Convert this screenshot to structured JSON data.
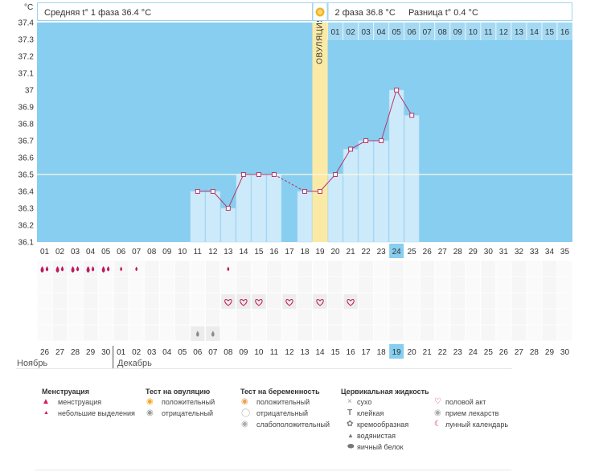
{
  "chart_data": {
    "type": "line",
    "y_unit": "°C",
    "ylim": [
      36.1,
      37.4
    ],
    "y_ticks": [
      "37.4",
      "37.3",
      "37.2",
      "37.1",
      "37",
      "36.9",
      "36.8",
      "36.7",
      "36.6",
      "36.5",
      "36.4",
      "36.3",
      "36.2",
      "36.1"
    ],
    "coverline": 36.5,
    "cycle_days": [
      "01",
      "02",
      "03",
      "04",
      "05",
      "06",
      "07",
      "08",
      "09",
      "10",
      "11",
      "12",
      "13",
      "14",
      "15",
      "16",
      "17",
      "18",
      "19",
      "20",
      "21",
      "22",
      "23",
      "24",
      "25",
      "26",
      "27",
      "28",
      "29",
      "30",
      "31",
      "32",
      "33",
      "34",
      "35"
    ],
    "today_day": "24",
    "ovulation_day": "19",
    "ovulation_label": "ОВУЛЯЦИЯ",
    "luteal_days": [
      "01",
      "02",
      "03",
      "04",
      "05",
      "06",
      "07",
      "08",
      "09",
      "10",
      "11",
      "12",
      "13",
      "14",
      "15",
      "16"
    ],
    "temperatures": [
      {
        "day": 11,
        "t": 36.4
      },
      {
        "day": 12,
        "t": 36.4
      },
      {
        "day": 13,
        "t": 36.3
      },
      {
        "day": 14,
        "t": 36.5
      },
      {
        "day": 15,
        "t": 36.5
      },
      {
        "day": 16,
        "t": 36.5
      },
      {
        "day": 18,
        "t": 36.4
      },
      {
        "day": 19,
        "t": 36.4
      },
      {
        "day": 20,
        "t": 36.5
      },
      {
        "day": 21,
        "t": 36.65
      },
      {
        "day": 22,
        "t": 36.7
      },
      {
        "day": 23,
        "t": 36.7
      },
      {
        "day": 24,
        "t": 37.0
      },
      {
        "day": 25,
        "t": 36.85
      }
    ],
    "dates": [
      "26",
      "27",
      "28",
      "29",
      "30",
      "01",
      "02",
      "03",
      "04",
      "05",
      "06",
      "07",
      "08",
      "09",
      "10",
      "11",
      "12",
      "13",
      "14",
      "15",
      "16",
      "17",
      "18",
      "19",
      "20",
      "21",
      "22",
      "23",
      "24",
      "25",
      "26",
      "27",
      "28",
      "29",
      "30"
    ],
    "date_colors": [
      "#333333",
      "#333333",
      "#333333",
      "#333333",
      "#c2185b",
      "#c2185b",
      "#333333",
      "#333333",
      "#333333",
      "#333333",
      "#333333",
      "#c2185b",
      "#c2185b",
      "#333333",
      "#333333",
      "#333333",
      "#333333",
      "#333333",
      "#c2185b",
      "#c2185b",
      "#333333",
      "#333333",
      "#333333",
      "#333333",
      "#333333",
      "#c2185b",
      "#c2185b",
      "#333333",
      "#333333",
      "#333333",
      "#333333",
      "#333333",
      "#c2185b",
      "#c2185b",
      "#333333"
    ],
    "today_date": "19",
    "months": {
      "left": "Ноябрь",
      "right": "Декабрь"
    },
    "symptoms": {
      "menstruation_big": [
        1,
        2,
        3,
        4,
        5
      ],
      "menstruation_small": [
        6,
        7,
        13
      ],
      "sex": [
        13,
        14,
        15,
        17,
        19,
        21
      ],
      "watery": [
        11,
        12
      ]
    },
    "header": {
      "phase1_label": "Средняя t° 1 фаза",
      "phase1_value": "36.4 °C",
      "phase2_label": "2 фаза",
      "phase2_value": "36.8 °C",
      "diff_label": "Разница t°",
      "diff_value": "0.4 °C"
    },
    "colors": {
      "plot_bg": "#87cef0",
      "bar_fill": "#cdeafb",
      "line": "#b5376b",
      "ovulation": "#fbeaa5",
      "coverline": "#fffbe0",
      "today": "#87cef0",
      "accent": "#c2185b"
    }
  },
  "legend": {
    "menstruation": {
      "title": "Менструация",
      "items": [
        "менструация",
        "небольшие выделения"
      ]
    },
    "ovulation_test": {
      "title": "Тест на овуляцию",
      "items": [
        "положительный",
        "отрицательный"
      ]
    },
    "pregnancy_test": {
      "title": "Тест на беременность",
      "items": [
        "положительный",
        "отрицательный",
        "слабоположительный"
      ]
    },
    "cervical": {
      "title": "Цервикальная жидкость",
      "items": [
        "сухо",
        "клейкая",
        "кремообразная",
        "водянистая",
        "яичный белок"
      ]
    },
    "other": {
      "items": [
        "половой акт",
        "прием лекарств",
        "лунный календарь"
      ]
    }
  }
}
